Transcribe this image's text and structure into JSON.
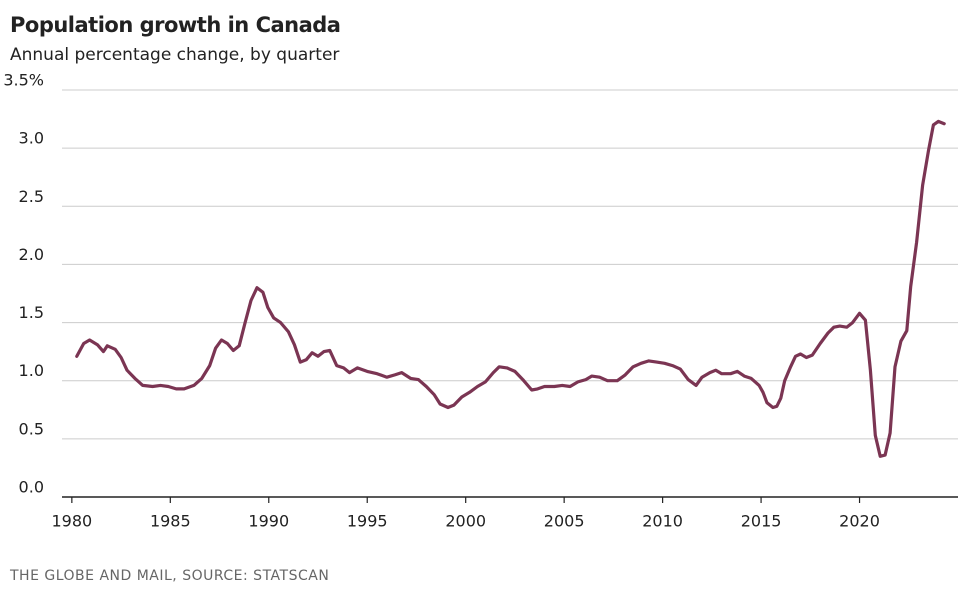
{
  "chart_data": {
    "type": "line",
    "title": "Population growth in Canada",
    "subtitle": "Annual percentage change, by quarter",
    "source": "THE GLOBE AND MAIL, SOURCE: STATSCAN",
    "color": "#7b3553",
    "grid": true,
    "xlim": [
      1979.5,
      2025
    ],
    "xticks": [
      1980,
      1985,
      1990,
      1995,
      2000,
      2005,
      2010,
      2015,
      2020
    ],
    "ylim": [
      0,
      3.5
    ],
    "yticks": [
      {
        "value": 0,
        "label": "0.0"
      },
      0.5,
      {
        "value": 1,
        "label": "1.0"
      },
      1.5,
      {
        "value": 2,
        "label": "2.0"
      },
      2.5,
      {
        "value": 3,
        "label": "3.0"
      },
      {
        "value": 3.5,
        "label": "3.5%"
      }
    ],
    "x": [
      1980.25,
      1980.6,
      1980.9,
      1981.3,
      1981.6,
      1981.8,
      1982.2,
      1982.5,
      1982.8,
      1983.2,
      1983.6,
      1984.1,
      1984.5,
      1984.9,
      1985.3,
      1985.7,
      1986.2,
      1986.6,
      1987.0,
      1987.3,
      1987.6,
      1987.9,
      1988.2,
      1988.5,
      1988.8,
      1989.1,
      1989.4,
      1989.7,
      1989.95,
      1990.25,
      1990.6,
      1991.0,
      1991.3,
      1991.6,
      1991.9,
      1992.2,
      1992.5,
      1992.8,
      1993.1,
      1993.45,
      1993.8,
      1994.1,
      1994.5,
      1995.0,
      1995.5,
      1996.0,
      1996.4,
      1996.75,
      1997.2,
      1997.6,
      1998.0,
      1998.4,
      1998.7,
      1999.1,
      1999.4,
      1999.8,
      2000.2,
      2000.6,
      2001.0,
      2001.4,
      2001.7,
      2002.1,
      2002.5,
      2002.9,
      2003.35,
      2003.65,
      2004.0,
      2004.5,
      2004.9,
      2005.3,
      2005.7,
      2006.1,
      2006.4,
      2006.8,
      2007.2,
      2007.7,
      2008.1,
      2008.5,
      2008.9,
      2009.3,
      2009.7,
      2010.1,
      2010.5,
      2010.9,
      2011.3,
      2011.7,
      2012.0,
      2012.4,
      2012.7,
      2013.0,
      2013.45,
      2013.8,
      2014.15,
      2014.5,
      2014.9,
      2015.1,
      2015.3,
      2015.6,
      2015.8,
      2016.0,
      2016.2,
      2016.5,
      2016.75,
      2017.0,
      2017.3,
      2017.6,
      2018.0,
      2018.4,
      2018.7,
      2019.0,
      2019.35,
      2019.65,
      2020.0,
      2020.3,
      2020.55,
      2020.8,
      2021.05,
      2021.3,
      2021.55,
      2021.8,
      2022.1,
      2022.4,
      2022.6,
      2022.9,
      2023.2,
      2023.5,
      2023.75,
      2024.0,
      2024.3
    ],
    "values": [
      1.21,
      1.32,
      1.35,
      1.31,
      1.25,
      1.3,
      1.27,
      1.2,
      1.09,
      1.02,
      0.96,
      0.95,
      0.96,
      0.95,
      0.93,
      0.93,
      0.96,
      1.02,
      1.13,
      1.28,
      1.35,
      1.32,
      1.26,
      1.3,
      1.5,
      1.69,
      1.8,
      1.76,
      1.63,
      1.54,
      1.5,
      1.42,
      1.31,
      1.16,
      1.18,
      1.24,
      1.21,
      1.25,
      1.26,
      1.13,
      1.11,
      1.07,
      1.11,
      1.08,
      1.06,
      1.03,
      1.05,
      1.07,
      1.02,
      1.01,
      0.95,
      0.88,
      0.8,
      0.77,
      0.79,
      0.86,
      0.9,
      0.95,
      0.99,
      1.07,
      1.12,
      1.11,
      1.08,
      1.01,
      0.92,
      0.93,
      0.95,
      0.95,
      0.96,
      0.95,
      0.99,
      1.01,
      1.04,
      1.03,
      1.0,
      1.0,
      1.05,
      1.12,
      1.15,
      1.17,
      1.16,
      1.15,
      1.13,
      1.1,
      1.01,
      0.96,
      1.03,
      1.07,
      1.09,
      1.06,
      1.06,
      1.08,
      1.04,
      1.02,
      0.96,
      0.9,
      0.81,
      0.77,
      0.78,
      0.85,
      1.0,
      1.12,
      1.21,
      1.23,
      1.2,
      1.22,
      1.32,
      1.41,
      1.46,
      1.47,
      1.46,
      1.5,
      1.58,
      1.52,
      1.09,
      0.53,
      0.35,
      0.36,
      0.55,
      1.12,
      1.34,
      1.43,
      1.81,
      2.19,
      2.68,
      2.98,
      3.2,
      3.23,
      3.21
    ]
  }
}
